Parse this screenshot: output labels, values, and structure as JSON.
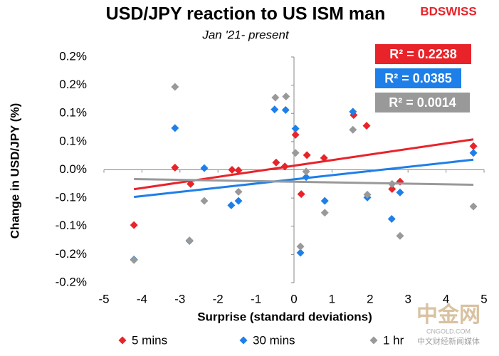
{
  "chart_data": {
    "type": "scatter",
    "title": "USD/JPY reaction to US ISM man",
    "subtitle": "Jan '21- present",
    "x_label": "Surprise (standard deviations)",
    "y_label": "Change in USD/JPY  (%)",
    "logo": "BDSWISS",
    "watermark": [
      "中金网",
      "CNGOLD.COM",
      "中文财经新闻媒体"
    ],
    "xlim": [
      -5,
      5
    ],
    "xticks": [
      -5,
      -4,
      -3,
      -2,
      -1,
      0,
      1,
      2,
      3,
      4,
      5
    ],
    "ylim": [
      -0.2,
      0.2
    ],
    "yticks": [
      {
        "value": 0.2,
        "label": "0.2%"
      },
      {
        "value": 0.15,
        "label": "0.2%"
      },
      {
        "value": 0.1,
        "label": "0.1%"
      },
      {
        "value": 0.05,
        "label": "0.1%"
      },
      {
        "value": 0,
        "label": "0.0%"
      },
      {
        "value": -0.05,
        "label": "-0.1%"
      },
      {
        "value": -0.1,
        "label": "-0.1%"
      },
      {
        "value": -0.15,
        "label": "-0.2%"
      },
      {
        "value": -0.2,
        "label": "-0.2%"
      }
    ],
    "trendline": true,
    "series": [
      {
        "name": "5 mins",
        "color": "#e8232a",
        "r2_label": "R² = 0.2238",
        "x": [
          -4.21,
          -3.13,
          -2.72,
          -1.63,
          -1.46,
          -0.47,
          -0.24,
          0.04,
          0.19,
          0.34,
          0.79,
          1.57,
          1.91,
          2.58,
          2.79,
          4.72
        ],
        "values": [
          -0.098,
          0.004,
          -0.025,
          0.0,
          -0.001,
          0.013,
          0.006,
          0.062,
          -0.043,
          0.026,
          0.021,
          0.097,
          0.078,
          -0.034,
          -0.021,
          0.042
        ]
      },
      {
        "name": "30 mins",
        "color": "#1e7fe8",
        "r2_label": "R² = 0.0385",
        "x": [
          -4.21,
          -3.13,
          -2.36,
          -2.75,
          -1.65,
          -1.46,
          -0.51,
          -0.22,
          0.04,
          0.17,
          0.32,
          0.81,
          1.55,
          1.93,
          2.57,
          2.79,
          4.72
        ],
        "values": [
          -0.159,
          0.074,
          0.003,
          -0.126,
          -0.063,
          -0.055,
          0.107,
          0.106,
          0.073,
          -0.147,
          -0.013,
          -0.055,
          0.103,
          -0.049,
          -0.087,
          -0.04,
          0.03
        ]
      },
      {
        "name": "1 hr",
        "color": "#999999",
        "r2_label": "R² = 0.0014",
        "x": [
          -4.21,
          -3.13,
          -2.75,
          -2.36,
          -1.46,
          -0.49,
          -0.21,
          0.04,
          0.17,
          0.32,
          0.81,
          1.55,
          1.93,
          2.58,
          2.79,
          4.72
        ],
        "values": [
          -0.16,
          0.147,
          -0.125,
          -0.055,
          -0.039,
          0.128,
          0.13,
          0.03,
          -0.136,
          -0.003,
          -0.076,
          0.071,
          -0.044,
          -0.025,
          -0.117,
          -0.065
        ]
      }
    ]
  }
}
